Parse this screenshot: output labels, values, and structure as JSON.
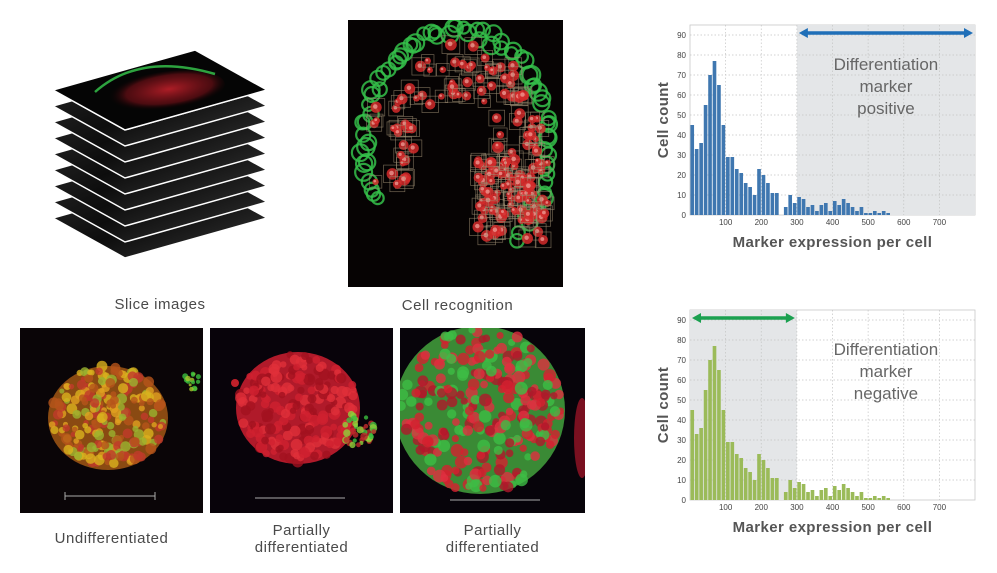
{
  "panels": {
    "slice_images": {
      "caption": "Slice images"
    },
    "cell_recognition": {
      "caption": "Cell recognition"
    },
    "undifferentiated": {
      "caption_lines": [
        "Undifferentiated"
      ]
    },
    "partial_1": {
      "caption_lines": [
        "Partially",
        "differentiated"
      ]
    },
    "partial_2": {
      "caption_lines": [
        "Partially",
        "differentiated"
      ]
    }
  },
  "colors": {
    "chart_positive": "#3f77b0",
    "chart_negative": "#9bbb59",
    "arrow_positive": "#1f6fb8",
    "arrow_negative": "#1aa050",
    "highlight": "#e4e6e8",
    "nucleus_red": "#d42a2a",
    "membrane_green": "#35c04a"
  },
  "chart_data": [
    {
      "type": "bar",
      "name": "positive",
      "ylabel": "Cell count",
      "xlabel": "Marker expression per cell",
      "xlim": [
        0,
        800
      ],
      "ylim": [
        0,
        95
      ],
      "xticks": [
        100,
        200,
        300,
        400,
        500,
        600,
        700
      ],
      "yticks": [
        0,
        10,
        20,
        30,
        40,
        50,
        60,
        70,
        80,
        90
      ],
      "bin_width": 12.5,
      "values": [
        45,
        33,
        36,
        55,
        70,
        77,
        65,
        45,
        29,
        29,
        23,
        21,
        16,
        14,
        10,
        23,
        20,
        16,
        11,
        11,
        0,
        4,
        10,
        6,
        9,
        8,
        4,
        5,
        2,
        5,
        6,
        2,
        7,
        5,
        8,
        6,
        4,
        2,
        4,
        1,
        1,
        2,
        1,
        2,
        1,
        0,
        0,
        0,
        0,
        0,
        0,
        0,
        0,
        0,
        0,
        0,
        0,
        0,
        0,
        0,
        0,
        0,
        0,
        0
      ],
      "highlight_range": [
        300,
        800
      ],
      "annotation_lines": [
        "Differentiation",
        "marker",
        "positive"
      ]
    },
    {
      "type": "bar",
      "name": "negative",
      "ylabel": "Cell count",
      "xlabel": "Marker expression per cell",
      "xlim": [
        0,
        800
      ],
      "ylim": [
        0,
        95
      ],
      "xticks": [
        100,
        200,
        300,
        400,
        500,
        600,
        700
      ],
      "yticks": [
        0,
        10,
        20,
        30,
        40,
        50,
        60,
        70,
        80,
        90
      ],
      "bin_width": 12.5,
      "values": [
        45,
        33,
        36,
        55,
        70,
        77,
        65,
        45,
        29,
        29,
        23,
        21,
        16,
        14,
        10,
        23,
        20,
        16,
        11,
        11,
        0,
        4,
        10,
        6,
        9,
        8,
        4,
        5,
        2,
        5,
        6,
        2,
        7,
        5,
        8,
        6,
        4,
        2,
        4,
        1,
        1,
        2,
        1,
        2,
        1,
        0,
        0,
        0,
        0,
        0,
        0,
        0,
        0,
        0,
        0,
        0,
        0,
        0,
        0,
        0,
        0,
        0,
        0,
        0
      ],
      "highlight_range": [
        0,
        300
      ],
      "annotation_lines": [
        "Differentiation",
        "marker",
        "negative"
      ]
    }
  ]
}
